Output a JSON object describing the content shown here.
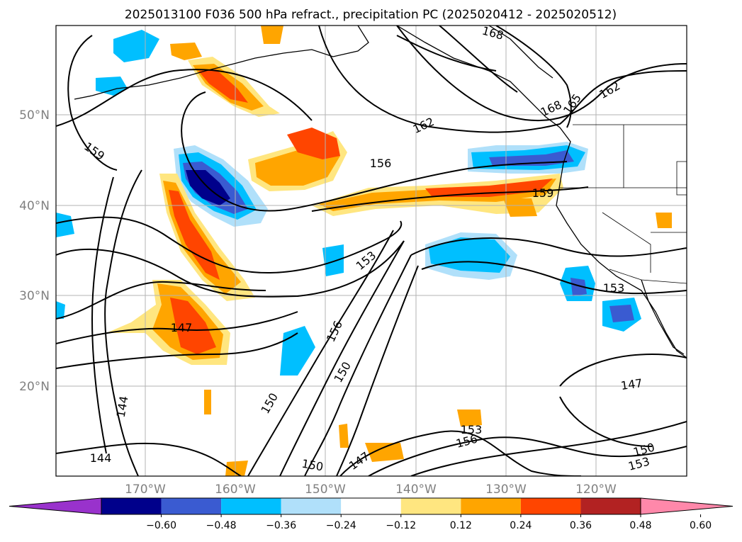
{
  "title": "2025013100 F036 500 hPa refract., precipitation PC (2025020412 - 2025020512)",
  "lat_labels": [
    "50°N",
    "40°N",
    "30°N",
    "20°N"
  ],
  "lon_labels": [
    "170°W",
    "160°W",
    "150°W",
    "140°W",
    "130°W",
    "120°W"
  ],
  "colorbar": {
    "ticks": [
      "−0.60",
      "−0.48",
      "−0.36",
      "−0.24",
      "−0.12",
      "0.12",
      "0.24",
      "0.36",
      "0.48",
      "0.60"
    ],
    "colors": [
      "#9932cc",
      "#00008b",
      "#3a5bd1",
      "#00bfff",
      "#b0e0fa",
      "#ffffff",
      "#ffe680",
      "#ffa500",
      "#ff4500",
      "#b22222",
      "#ff88aa"
    ]
  },
  "contour_labels": [
    "168",
    "162",
    "168",
    "165",
    "162",
    "159",
    "156",
    "159",
    "153",
    "153",
    "156",
    "147",
    "150",
    "150",
    "144",
    "144",
    "147",
    "150",
    "153",
    "156",
    "150",
    "147",
    "153"
  ]
}
